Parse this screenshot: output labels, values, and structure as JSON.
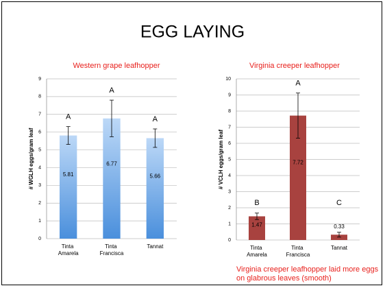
{
  "title": "EGG LAYING",
  "caption": "Virginia creeper leafhopper laid more eggs on glabrous leaves (smooth)",
  "chart_data": [
    {
      "type": "bar",
      "title": "Western grape leafhopper",
      "y_label": "# WGLH eggs/gram leaf",
      "categories": [
        "Tinta Amarela",
        "Tinta Francisca",
        "Tannat"
      ],
      "values": [
        5.81,
        6.77,
        5.66
      ],
      "errors": [
        0.5,
        1.03,
        0.52
      ],
      "annotations": [
        "A",
        "A",
        "A"
      ],
      "color": "#5b9bd5",
      "ylim": [
        0,
        9
      ],
      "yticks": [
        0,
        1,
        2,
        3,
        4,
        5,
        6,
        7,
        8,
        9
      ],
      "grid": true
    },
    {
      "type": "bar",
      "title": "Virginia creeper leafhopper",
      "y_label": "# VCLH eggs/gram leaf",
      "categories": [
        "Tinta Amarela",
        "Tinta Francisca",
        "Tannat"
      ],
      "values": [
        1.47,
        7.72,
        0.33
      ],
      "errors": [
        0.2,
        1.4,
        0.15
      ],
      "annotations": [
        "B",
        "A",
        "C"
      ],
      "color": "#a8423f",
      "ylim": [
        0,
        10
      ],
      "yticks": [
        0,
        1,
        2,
        3,
        4,
        5,
        6,
        7,
        8,
        9,
        10
      ],
      "grid": true
    }
  ]
}
